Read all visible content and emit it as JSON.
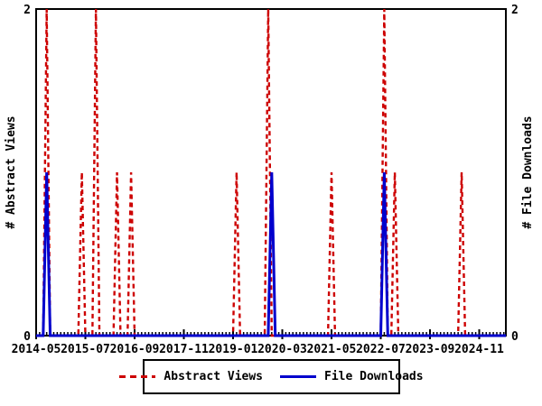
{
  "title": "",
  "colors": {
    "abstract_views": "#cd0000",
    "file_downloads": "#0000cd",
    "axis": "#000000",
    "background": "#ffffff"
  },
  "y_axis_left": {
    "label": "# Abstract Views",
    "tick_labels": [
      "0",
      "2"
    ]
  },
  "y_axis_right": {
    "label": "# File Downloads",
    "tick_labels": [
      "0",
      "2"
    ]
  },
  "x_axis": {
    "tick_labels": [
      "2014-05",
      "2015-07",
      "2016-09",
      "2017-11",
      "2019-01",
      "2020-03",
      "2021-05",
      "2022-07",
      "2023-09",
      "2024-11"
    ],
    "label_interval_months": 14,
    "minor_tick_unit": "month"
  },
  "legend": {
    "items": [
      {
        "label": "Abstract Views",
        "style": "dashed",
        "color": "#cd0000"
      },
      {
        "label": "File Downloads",
        "style": "solid",
        "color": "#0000cd"
      }
    ]
  },
  "chart_data": {
    "type": "line",
    "title": "",
    "xlabel": "",
    "ylabel_left": "# Abstract Views",
    "ylabel_right": "# File Downloads",
    "ylim": [
      0,
      2
    ],
    "y_ticks": [
      0,
      2
    ],
    "grid": false,
    "legend_position": "bottom-center",
    "x_start_month": "2014-05",
    "x_end_month": "2025-06",
    "x_major_tick_months": [
      "2014-05",
      "2015-07",
      "2016-09",
      "2017-11",
      "2019-01",
      "2020-03",
      "2021-05",
      "2022-07",
      "2023-09",
      "2024-11"
    ],
    "series": [
      {
        "name": "Abstract Views",
        "color": "#cd0000",
        "line_style": "dashed",
        "axis": "left",
        "baseline_value": 0,
        "spikes": [
          {
            "month": "2014-08",
            "value": 2
          },
          {
            "month": "2015-06",
            "value": 1
          },
          {
            "month": "2015-10",
            "value": 2
          },
          {
            "month": "2016-04",
            "value": 1
          },
          {
            "month": "2016-08",
            "value": 1
          },
          {
            "month": "2019-02",
            "value": 1
          },
          {
            "month": "2019-11",
            "value": 2
          },
          {
            "month": "2021-05",
            "value": 1
          },
          {
            "month": "2022-08",
            "value": 2
          },
          {
            "month": "2022-11",
            "value": 1
          },
          {
            "month": "2024-06",
            "value": 1
          }
        ]
      },
      {
        "name": "File Downloads",
        "color": "#0000cd",
        "line_style": "solid",
        "axis": "right",
        "baseline_value": 0,
        "spikes": [
          {
            "month": "2014-08",
            "value": 1
          },
          {
            "month": "2019-12",
            "value": 1
          },
          {
            "month": "2022-08",
            "value": 1
          }
        ]
      }
    ]
  }
}
